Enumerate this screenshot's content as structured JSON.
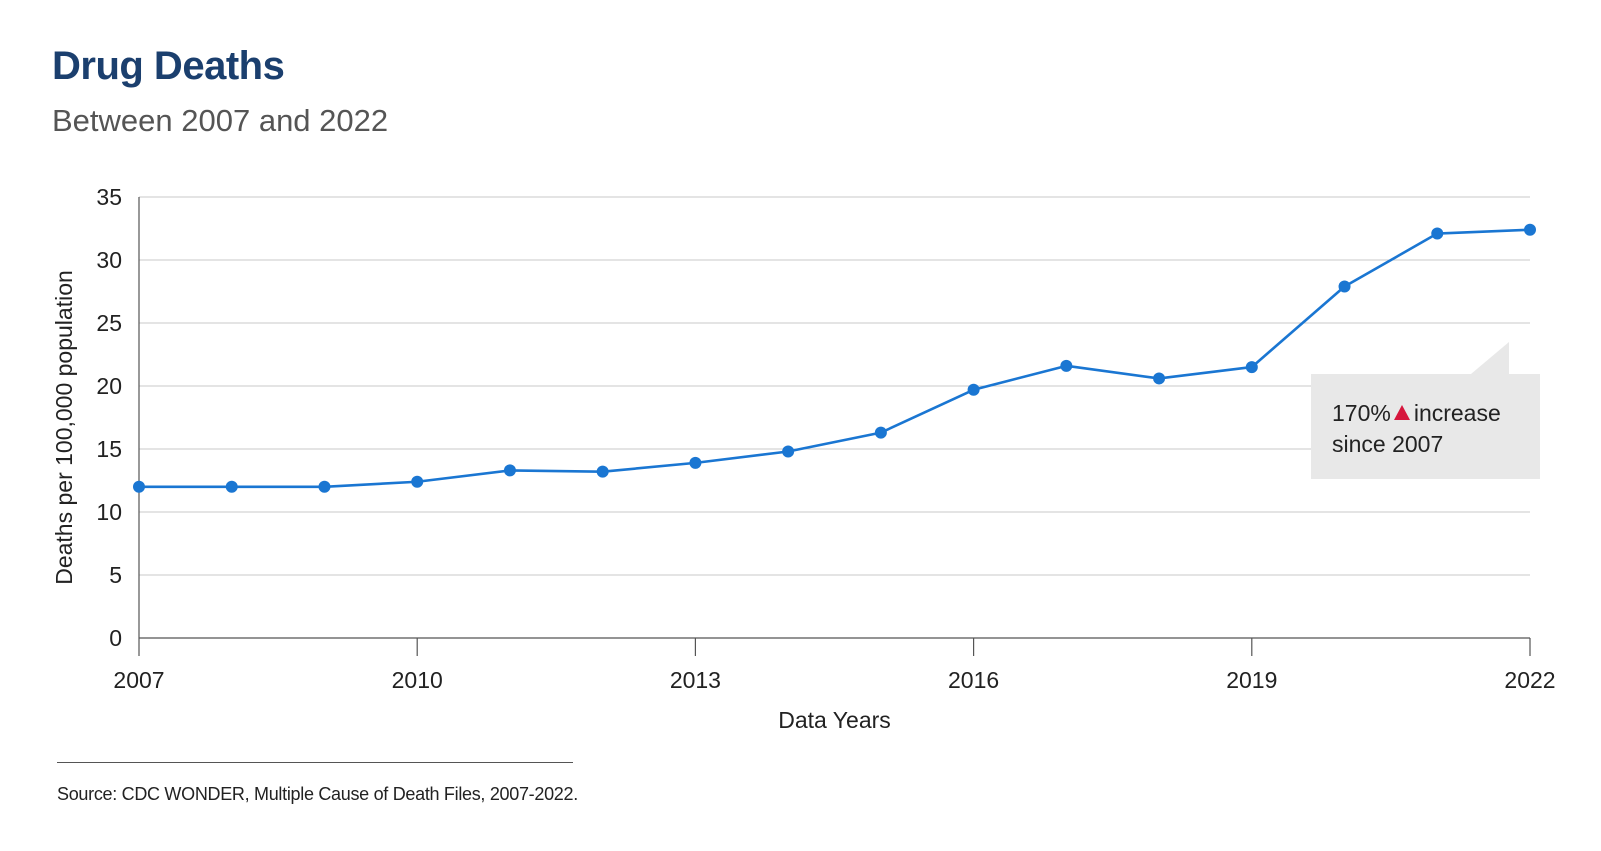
{
  "header": {
    "title": "Drug Deaths",
    "subtitle": "Between 2007 and 2022"
  },
  "callout": {
    "pct": "170%",
    "line1_rest": "increase",
    "line2": "since 2007",
    "triangle_color": "#d6163c"
  },
  "footer": {
    "source": "Source: CDC WONDER, Multiple Cause of Death Files, 2007-2022."
  },
  "chart_data": {
    "type": "line",
    "xlabel": "Data Years",
    "ylabel": "Deaths per 100,000 population",
    "xlim": [
      2007,
      2022
    ],
    "ylim": [
      0,
      35
    ],
    "x_ticks": [
      2007,
      2010,
      2013,
      2016,
      2019,
      2022
    ],
    "y_ticks": [
      0,
      5,
      10,
      15,
      20,
      25,
      30,
      35
    ],
    "grid": true,
    "line_color": "#1a76d2",
    "series": [
      {
        "x": [
          2007,
          2008,
          2009,
          2010,
          2011,
          2012,
          2013,
          2014,
          2015,
          2016,
          2017,
          2018,
          2019,
          2020,
          2021,
          2022
        ],
        "values": [
          12.0,
          12.0,
          12.0,
          12.4,
          13.3,
          13.2,
          13.9,
          14.8,
          16.3,
          19.7,
          21.6,
          20.6,
          21.5,
          27.9,
          32.1,
          32.4
        ]
      }
    ]
  }
}
